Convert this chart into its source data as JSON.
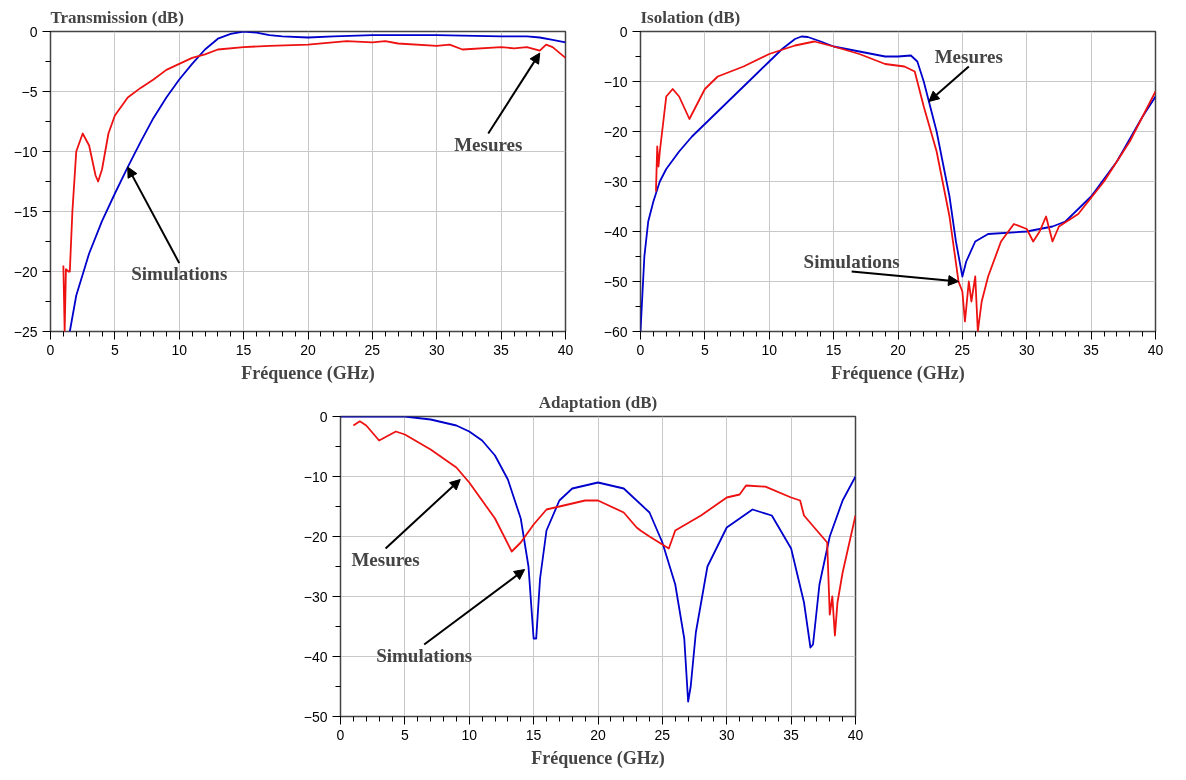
{
  "chart_data": [
    {
      "type": "line",
      "title": "Transmission (dB)",
      "xlabel": "Fréquence (GHz)",
      "xlim": [
        0,
        40
      ],
      "ylim": [
        -25,
        0
      ],
      "xticks": [
        0,
        5,
        10,
        15,
        20,
        25,
        30,
        35,
        40
      ],
      "yticks": [
        0,
        -5,
        -10,
        -15,
        -20,
        -25
      ],
      "grid": true,
      "line_style": "solid",
      "marker": "none",
      "annotations": [
        {
          "text": "Mesures",
          "x": 38,
          "y": -1.8
        },
        {
          "text": "Simulations",
          "x": 6,
          "y": -11.3
        }
      ],
      "series": [
        {
          "color": "#0000cc",
          "x": [
            1.5,
            2,
            3,
            4,
            5,
            6,
            7,
            8,
            9,
            10,
            11,
            12,
            13,
            14,
            15,
            16,
            17,
            18,
            20,
            22,
            25,
            30,
            35,
            37,
            38,
            39,
            40
          ],
          "values": [
            -25,
            -22,
            -18.5,
            -15.8,
            -13.5,
            -11.3,
            -9.2,
            -7.2,
            -5.5,
            -4,
            -2.7,
            -1.5,
            -0.6,
            -0.2,
            0,
            -0.1,
            -0.3,
            -0.4,
            -0.5,
            -0.4,
            -0.3,
            -0.3,
            -0.4,
            -0.4,
            -0.5,
            -0.7,
            -0.9
          ]
        },
        {
          "color": "#ee1111",
          "x": [
            1,
            1.1,
            1.2,
            1.4,
            1.5,
            1.7,
            2,
            2.5,
            3,
            3.5,
            3.7,
            4,
            4.5,
            5,
            6,
            7,
            8,
            9,
            10,
            11,
            12,
            13,
            15,
            17,
            20,
            23,
            25,
            26,
            27,
            30,
            31,
            32,
            35,
            36,
            37,
            38,
            38.5,
            39,
            40
          ],
          "values": [
            -19.5,
            -25,
            -19.8,
            -20,
            -20,
            -15,
            -10,
            -8.5,
            -9.5,
            -12,
            -12.5,
            -11.5,
            -8.5,
            -7,
            -5.5,
            -4.7,
            -4,
            -3.2,
            -2.7,
            -2.2,
            -1.9,
            -1.5,
            -1.3,
            -1.2,
            -1.1,
            -0.8,
            -0.9,
            -0.8,
            -1,
            -1.2,
            -1.1,
            -1.5,
            -1.3,
            -1.4,
            -1.3,
            -1.6,
            -1.1,
            -1.3,
            -2.2
          ]
        }
      ]
    },
    {
      "type": "line",
      "title": "Isolation (dB)",
      "xlabel": "Fréquence (GHz)",
      "xlim": [
        0,
        40
      ],
      "ylim": [
        -60,
        0
      ],
      "xticks": [
        0,
        5,
        10,
        15,
        20,
        25,
        30,
        35,
        40
      ],
      "yticks": [
        0,
        -10,
        -20,
        -30,
        -40,
        -50,
        -60
      ],
      "grid": true,
      "line_style": "solid",
      "marker": "none",
      "annotations": [
        {
          "text": "Mesures",
          "x": 22.4,
          "y": -14
        },
        {
          "text": "Simulations",
          "x": 24.7,
          "y": -50
        }
      ],
      "series": [
        {
          "color": "#0000cc",
          "x": [
            0,
            0.1,
            0.3,
            0.6,
            1,
            1.5,
            2,
            3,
            4,
            5,
            6,
            7,
            8,
            9,
            10,
            11,
            12,
            12.5,
            13,
            14,
            15,
            17,
            19,
            20,
            21,
            21.5,
            22,
            23,
            24,
            24.5,
            25,
            25.3,
            26,
            27,
            30,
            32,
            33,
            35,
            37,
            39,
            40
          ],
          "values": [
            -60,
            -55,
            -45,
            -38,
            -34,
            -30,
            -27.5,
            -24,
            -21,
            -18.5,
            -16,
            -13.5,
            -11,
            -8.5,
            -6,
            -3.5,
            -1.5,
            -1,
            -1.1,
            -2,
            -3,
            -4,
            -5,
            -5,
            -4.8,
            -6,
            -10,
            -20,
            -33,
            -42,
            -49,
            -46,
            -42,
            -40.5,
            -40,
            -39,
            -38,
            -33,
            -26,
            -17,
            -13
          ]
        },
        {
          "color": "#ee1111",
          "x": [
            1.2,
            1.3,
            1.4,
            1.5,
            2,
            2.5,
            3,
            3.8,
            4.5,
            5,
            6,
            8,
            10,
            12,
            13.5,
            15,
            17,
            19,
            20.5,
            21.3,
            22,
            23,
            24,
            24.7,
            25,
            25.2,
            25.5,
            25.7,
            26,
            26.2,
            26.5,
            27,
            28,
            29,
            30,
            30.5,
            31,
            31.5,
            32,
            32.5,
            34,
            36,
            38,
            40
          ],
          "values": [
            -32,
            -23,
            -27,
            -24,
            -13,
            -11.5,
            -13,
            -17.5,
            -14,
            -11.5,
            -9,
            -7,
            -4.5,
            -2.8,
            -2,
            -3,
            -4.5,
            -6.5,
            -7,
            -8,
            -15,
            -24,
            -37,
            -50,
            -52,
            -58,
            -50,
            -54,
            -49,
            -60,
            -54,
            -49,
            -42,
            -38.5,
            -39.5,
            -42,
            -40,
            -37,
            -42,
            -39,
            -36.5,
            -30,
            -22,
            -12
          ]
        }
      ]
    },
    {
      "type": "line",
      "title": "Adaptation (dB)",
      "xlabel": "Fréquence (GHz)",
      "xlim": [
        0,
        40
      ],
      "ylim": [
        -50,
        0
      ],
      "xticks": [
        0,
        5,
        10,
        15,
        20,
        25,
        30,
        35,
        40
      ],
      "yticks": [
        0,
        -10,
        -20,
        -30,
        -40,
        -50
      ],
      "grid": true,
      "line_style": "solid",
      "marker": "none",
      "annotations": [
        {
          "text": "Mesures",
          "x": 9.3,
          "y": -10.5
        },
        {
          "text": "Simulations",
          "x": 14.3,
          "y": -25.5
        }
      ],
      "series": [
        {
          "color": "#0000cc",
          "x": [
            0,
            5,
            7,
            9,
            10,
            11,
            12,
            13,
            14,
            14.6,
            15,
            15.2,
            15.5,
            16,
            17,
            18,
            20,
            22,
            24,
            25,
            26,
            26.7,
            27,
            27.2,
            27.6,
            28.5,
            30,
            32,
            33.5,
            35,
            36,
            36.5,
            36.7,
            37.2,
            38,
            39,
            40
          ],
          "values": [
            0,
            0,
            -0.5,
            -1.5,
            -2.5,
            -4,
            -6.5,
            -10.5,
            -17,
            -25,
            -37,
            -37,
            -27,
            -19,
            -14,
            -12,
            -11,
            -12,
            -16,
            -21,
            -28,
            -37,
            -47.5,
            -45,
            -36,
            -25,
            -18.5,
            -15.5,
            -16.5,
            -22,
            -31,
            -38.5,
            -38,
            -28,
            -20,
            -14,
            -10
          ]
        },
        {
          "color": "#ee1111",
          "x": [
            1,
            1.5,
            2,
            3,
            4.3,
            5,
            7,
            9,
            10,
            12,
            13.3,
            14,
            15,
            16,
            17,
            19,
            20,
            22,
            23,
            23.3,
            24,
            25.5,
            26,
            28,
            30,
            31,
            31.5,
            33,
            35,
            35.7,
            36,
            37,
            37.8,
            38,
            38.2,
            38.4,
            38.6,
            39,
            40
          ],
          "values": [
            -1.5,
            -0.8,
            -1.5,
            -4,
            -2.5,
            -3,
            -5.5,
            -8.5,
            -11,
            -17,
            -22.5,
            -21,
            -18,
            -15.5,
            -15,
            -14,
            -14,
            -16,
            -18.5,
            -19,
            -20,
            -22,
            -19,
            -16.5,
            -13.5,
            -13,
            -11.5,
            -11.7,
            -13.5,
            -14,
            -16.5,
            -19,
            -21,
            -33,
            -30,
            -36.5,
            -31,
            -26,
            -16.5
          ]
        }
      ]
    }
  ]
}
